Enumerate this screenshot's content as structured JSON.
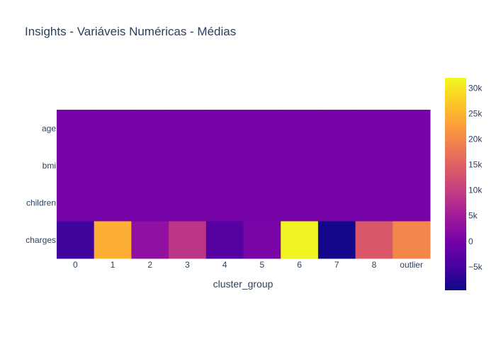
{
  "chart_data": {
    "type": "heatmap",
    "title": "Insights - Variáveis Numéricas - Médias",
    "xlabel": "cluster_group",
    "ylabel": "",
    "x": [
      "0",
      "1",
      "2",
      "3",
      "4",
      "5",
      "6",
      "7",
      "8",
      "outlier"
    ],
    "y": [
      "age",
      "bmi",
      "children",
      "charges"
    ],
    "z": [
      [
        40,
        31,
        39,
        50,
        39,
        38,
        39,
        39,
        52,
        41
      ],
      [
        31,
        35,
        30,
        30,
        31,
        31,
        35,
        28,
        31,
        32
      ],
      [
        1,
        1,
        1,
        1,
        1,
        1,
        1,
        1,
        1,
        1
      ],
      [
        -5500,
        24500,
        2800,
        8800,
        -3300,
        400,
        31500,
        -9200,
        13800,
        19700
      ]
    ],
    "colorscale": "plasma",
    "zmin": -9600,
    "zmax": 32000,
    "colorbar": {
      "tickvals": [
        -5000,
        0,
        5000,
        10000,
        15000,
        20000,
        25000,
        30000
      ],
      "ticktext": [
        "−5k",
        "0",
        "5k",
        "10k",
        "15k",
        "20k",
        "25k",
        "30k"
      ]
    }
  }
}
